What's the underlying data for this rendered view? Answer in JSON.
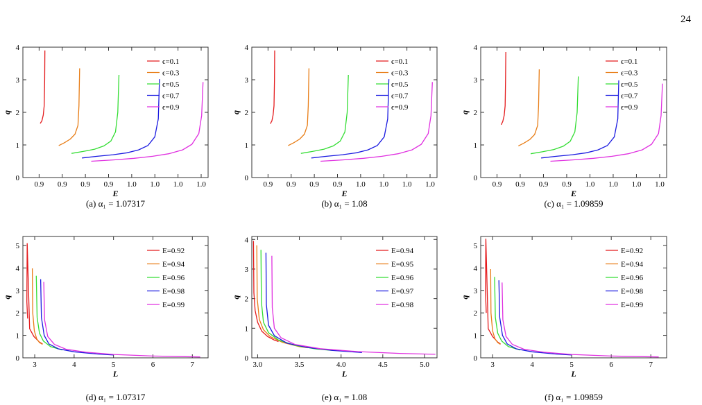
{
  "page_number": "24",
  "colors": {
    "red": "#e41a1c",
    "orange": "#e87d16",
    "green": "#33dd33",
    "blue": "#1a1ae0",
    "magenta": "#e030e0"
  },
  "chart_data": [
    {
      "type": "line",
      "caption": "(a) α₁ = 1.07317",
      "xlabel": "E",
      "ylabel": "q",
      "xlim": [
        0.913,
        0.993
      ],
      "ylim": [
        0,
        4
      ],
      "xticks": [
        0.92,
        0.93,
        0.94,
        0.95,
        0.96,
        0.97,
        0.98,
        0.99
      ],
      "yticks": [
        0,
        1,
        2,
        3,
        4
      ],
      "legend_position": "top-right",
      "series": [
        {
          "name": "ϵ=0.1",
          "color": "red",
          "x": [
            0.9205,
            0.9212,
            0.9218,
            0.9222,
            0.9224,
            0.9225
          ],
          "y": [
            1.66,
            1.74,
            1.92,
            2.2,
            3.0,
            3.9
          ]
        },
        {
          "name": "ϵ=0.3",
          "color": "orange",
          "x": [
            0.9285,
            0.931,
            0.9335,
            0.9355,
            0.9368,
            0.9372,
            0.9375
          ],
          "y": [
            0.98,
            1.07,
            1.18,
            1.33,
            1.6,
            2.2,
            3.35
          ]
        },
        {
          "name": "ϵ=0.5",
          "color": "green",
          "x": [
            0.934,
            0.939,
            0.944,
            0.948,
            0.951,
            0.953,
            0.954,
            0.9545
          ],
          "y": [
            0.74,
            0.8,
            0.87,
            0.97,
            1.12,
            1.4,
            2.0,
            3.15
          ]
        },
        {
          "name": "ϵ=0.7",
          "color": "blue",
          "x": [
            0.9385,
            0.945,
            0.952,
            0.958,
            0.963,
            0.967,
            0.97,
            0.9715,
            0.972
          ],
          "y": [
            0.6,
            0.65,
            0.7,
            0.76,
            0.85,
            0.98,
            1.25,
            1.8,
            3.02
          ]
        },
        {
          "name": "ϵ=0.9",
          "color": "magenta",
          "x": [
            0.9425,
            0.952,
            0.961,
            0.969,
            0.976,
            0.982,
            0.986,
            0.989,
            0.9902,
            0.9908
          ],
          "y": [
            0.5,
            0.54,
            0.59,
            0.65,
            0.73,
            0.85,
            1.02,
            1.35,
            1.9,
            2.93
          ]
        }
      ]
    },
    {
      "type": "line",
      "caption": "(b) α₁ = 1.08",
      "xlabel": "E",
      "ylabel": "q",
      "xlim": [
        0.913,
        0.993
      ],
      "ylim": [
        0,
        4
      ],
      "xticks": [
        0.92,
        0.93,
        0.94,
        0.95,
        0.96,
        0.97,
        0.98,
        0.99
      ],
      "yticks": [
        0,
        1,
        2,
        3,
        4
      ],
      "legend_position": "top-right",
      "series": [
        {
          "name": "ϵ=0.1",
          "color": "red",
          "x": [
            0.921,
            0.9217,
            0.9222,
            0.9226,
            0.9228,
            0.9229
          ],
          "y": [
            1.65,
            1.74,
            1.92,
            2.2,
            3.0,
            3.9
          ]
        },
        {
          "name": "ϵ=0.3",
          "color": "orange",
          "x": [
            0.9287,
            0.9312,
            0.9337,
            0.9357,
            0.937,
            0.9374,
            0.9377
          ],
          "y": [
            0.98,
            1.07,
            1.18,
            1.33,
            1.6,
            2.2,
            3.35
          ]
        },
        {
          "name": "ϵ=0.5",
          "color": "green",
          "x": [
            0.9342,
            0.9392,
            0.9442,
            0.9482,
            0.9512,
            0.9532,
            0.9542,
            0.9547
          ],
          "y": [
            0.74,
            0.8,
            0.87,
            0.97,
            1.12,
            1.4,
            2.0,
            3.15
          ]
        },
        {
          "name": "ϵ=0.7",
          "color": "blue",
          "x": [
            0.9387,
            0.9452,
            0.9522,
            0.9582,
            0.9632,
            0.9672,
            0.9702,
            0.9717,
            0.9722
          ],
          "y": [
            0.6,
            0.65,
            0.7,
            0.76,
            0.85,
            0.98,
            1.25,
            1.8,
            3.02
          ]
        },
        {
          "name": "ϵ=0.9",
          "color": "magenta",
          "x": [
            0.9427,
            0.9522,
            0.9612,
            0.9692,
            0.9762,
            0.9822,
            0.9862,
            0.9892,
            0.9904,
            0.991
          ],
          "y": [
            0.5,
            0.54,
            0.59,
            0.65,
            0.73,
            0.85,
            1.02,
            1.35,
            1.9,
            2.93
          ]
        }
      ]
    },
    {
      "type": "line",
      "caption": "(c) α₁ = 1.09859",
      "xlabel": "E",
      "ylabel": "q",
      "xlim": [
        0.913,
        0.993
      ],
      "ylim": [
        0,
        4
      ],
      "xticks": [
        0.92,
        0.93,
        0.94,
        0.95,
        0.96,
        0.97,
        0.98,
        0.99
      ],
      "yticks": [
        0,
        1,
        2,
        3,
        4
      ],
      "legend_position": "top-right",
      "series": [
        {
          "name": "ϵ=0.1",
          "color": "red",
          "x": [
            0.9218,
            0.9225,
            0.9231,
            0.9235,
            0.9237,
            0.9238
          ],
          "y": [
            1.62,
            1.72,
            1.9,
            2.2,
            3.0,
            3.85
          ]
        },
        {
          "name": "ϵ=0.3",
          "color": "orange",
          "x": [
            0.9292,
            0.9317,
            0.9342,
            0.9362,
            0.9375,
            0.9379,
            0.9382
          ],
          "y": [
            0.97,
            1.06,
            1.17,
            1.32,
            1.6,
            2.2,
            3.32
          ]
        },
        {
          "name": "ϵ=0.5",
          "color": "green",
          "x": [
            0.9345,
            0.9395,
            0.9445,
            0.9485,
            0.9515,
            0.9535,
            0.9545,
            0.955
          ],
          "y": [
            0.73,
            0.79,
            0.86,
            0.96,
            1.11,
            1.4,
            2.0,
            3.1
          ]
        },
        {
          "name": "ϵ=0.7",
          "color": "blue",
          "x": [
            0.939,
            0.9455,
            0.9525,
            0.9585,
            0.9635,
            0.9675,
            0.9705,
            0.972,
            0.9724
          ],
          "y": [
            0.6,
            0.65,
            0.7,
            0.76,
            0.85,
            0.98,
            1.25,
            1.8,
            2.98
          ]
        },
        {
          "name": "ϵ=0.9",
          "color": "magenta",
          "x": [
            0.943,
            0.9525,
            0.9615,
            0.9695,
            0.9765,
            0.9825,
            0.9865,
            0.9895,
            0.9906,
            0.9912
          ],
          "y": [
            0.5,
            0.54,
            0.59,
            0.65,
            0.73,
            0.85,
            1.02,
            1.35,
            1.9,
            2.88
          ]
        }
      ]
    },
    {
      "type": "line",
      "caption": "(d) α₁ = 1.07317",
      "xlabel": "L",
      "ylabel": "q",
      "xlim": [
        2.7,
        7.4
      ],
      "ylim": [
        0,
        5.4
      ],
      "xticks": [
        3,
        4,
        5,
        6,
        7
      ],
      "yticks": [
        0,
        1,
        2,
        3,
        4,
        5
      ],
      "legend_position": "top-right",
      "series": [
        {
          "name": "E=0.92",
          "color": "red",
          "x": [
            2.82,
            2.8,
            2.81,
            2.87,
            2.98,
            3.12,
            3.2
          ],
          "y": [
            1.75,
            2.5,
            5.1,
            1.3,
            0.95,
            0.7,
            0.62
          ]
        },
        {
          "name": "E=0.94",
          "color": "orange",
          "x": [
            2.94,
            2.95,
            2.99,
            3.05,
            3.12,
            3.2
          ],
          "y": [
            3.98,
            2.0,
            1.2,
            0.85,
            0.68,
            0.6
          ]
        },
        {
          "name": "E=0.96",
          "color": "green",
          "x": [
            3.04,
            3.06,
            3.12,
            3.22,
            3.4,
            3.7
          ],
          "y": [
            3.65,
            1.8,
            1.1,
            0.75,
            0.5,
            0.35
          ]
        },
        {
          "name": "E=0.98",
          "color": "blue",
          "x": [
            3.15,
            3.17,
            3.24,
            3.36,
            3.6,
            4.0,
            4.6,
            5.0
          ],
          "y": [
            3.5,
            1.8,
            1.0,
            0.62,
            0.4,
            0.27,
            0.17,
            0.13
          ]
        },
        {
          "name": "E=0.99",
          "color": "magenta",
          "x": [
            3.23,
            3.25,
            3.33,
            3.5,
            3.8,
            4.3,
            5.0,
            6.0,
            7.2
          ],
          "y": [
            3.38,
            1.7,
            0.95,
            0.6,
            0.38,
            0.25,
            0.15,
            0.08,
            0.04
          ]
        }
      ]
    },
    {
      "type": "line",
      "caption": "(e) α₁ = 1.08",
      "xlabel": "L",
      "ylabel": "q",
      "xlim": [
        2.93,
        5.15
      ],
      "ylim": [
        0,
        4.1
      ],
      "xticks": [
        3.0,
        3.5,
        4.0,
        4.5,
        5.0
      ],
      "yticks": [
        0,
        1,
        2,
        3,
        4
      ],
      "legend_position": "top-right",
      "series": [
        {
          "name": "E=0.94",
          "color": "red",
          "x": [
            2.95,
            2.955,
            2.97,
            3.0,
            3.05,
            3.12,
            3.2,
            3.25
          ],
          "y": [
            3.95,
            2.2,
            1.6,
            1.2,
            0.9,
            0.72,
            0.6,
            0.55
          ]
        },
        {
          "name": "E=0.95",
          "color": "orange",
          "x": [
            2.99,
            2.995,
            3.02,
            3.07,
            3.15,
            3.3,
            3.5,
            3.6
          ],
          "y": [
            3.8,
            2.0,
            1.3,
            0.95,
            0.72,
            0.52,
            0.38,
            0.34
          ]
        },
        {
          "name": "E=0.96",
          "color": "green",
          "x": [
            3.04,
            3.045,
            3.07,
            3.13,
            3.25,
            3.45,
            3.7,
            3.9
          ],
          "y": [
            3.65,
            1.9,
            1.2,
            0.85,
            0.6,
            0.42,
            0.3,
            0.25
          ]
        },
        {
          "name": "E=0.97",
          "color": "blue",
          "x": [
            3.1,
            3.105,
            3.13,
            3.2,
            3.35,
            3.6,
            3.9,
            4.25
          ],
          "y": [
            3.55,
            1.8,
            1.1,
            0.75,
            0.5,
            0.35,
            0.25,
            0.18
          ]
        },
        {
          "name": "E=0.98",
          "color": "magenta",
          "x": [
            3.17,
            3.175,
            3.2,
            3.28,
            3.45,
            3.75,
            4.2,
            4.7,
            5.13
          ],
          "y": [
            3.45,
            1.7,
            1.0,
            0.68,
            0.45,
            0.31,
            0.21,
            0.15,
            0.12
          ]
        }
      ]
    },
    {
      "type": "line",
      "caption": "(f) α₁ = 1.09859",
      "xlabel": "L",
      "ylabel": "q",
      "xlim": [
        2.7,
        7.4
      ],
      "ylim": [
        0,
        5.4
      ],
      "xticks": [
        3,
        4,
        5,
        6,
        7
      ],
      "yticks": [
        0,
        1,
        2,
        3,
        4,
        5
      ],
      "legend_position": "top-right",
      "series": [
        {
          "name": "E=0.92",
          "color": "red",
          "x": [
            2.84,
            2.82,
            2.83,
            2.89,
            3.0,
            3.13,
            3.2
          ],
          "y": [
            2.0,
            3.0,
            5.3,
            1.3,
            0.95,
            0.7,
            0.62
          ]
        },
        {
          "name": "E=0.94",
          "color": "orange",
          "x": [
            2.95,
            2.96,
            3.0,
            3.06,
            3.13,
            3.2
          ],
          "y": [
            3.95,
            2.0,
            1.2,
            0.85,
            0.68,
            0.6
          ]
        },
        {
          "name": "E=0.96",
          "color": "green",
          "x": [
            3.05,
            3.07,
            3.13,
            3.23,
            3.4,
            3.7
          ],
          "y": [
            3.6,
            1.8,
            1.1,
            0.75,
            0.5,
            0.35
          ]
        },
        {
          "name": "E=0.98",
          "color": "blue",
          "x": [
            3.16,
            3.18,
            3.25,
            3.37,
            3.6,
            4.0,
            4.6,
            5.0
          ],
          "y": [
            3.45,
            1.8,
            1.0,
            0.62,
            0.4,
            0.27,
            0.17,
            0.13
          ]
        },
        {
          "name": "E=0.99",
          "color": "magenta",
          "x": [
            3.24,
            3.26,
            3.34,
            3.5,
            3.8,
            4.3,
            5.0,
            6.0,
            7.2
          ],
          "y": [
            3.35,
            1.7,
            0.95,
            0.6,
            0.38,
            0.25,
            0.15,
            0.08,
            0.04
          ]
        }
      ]
    }
  ]
}
